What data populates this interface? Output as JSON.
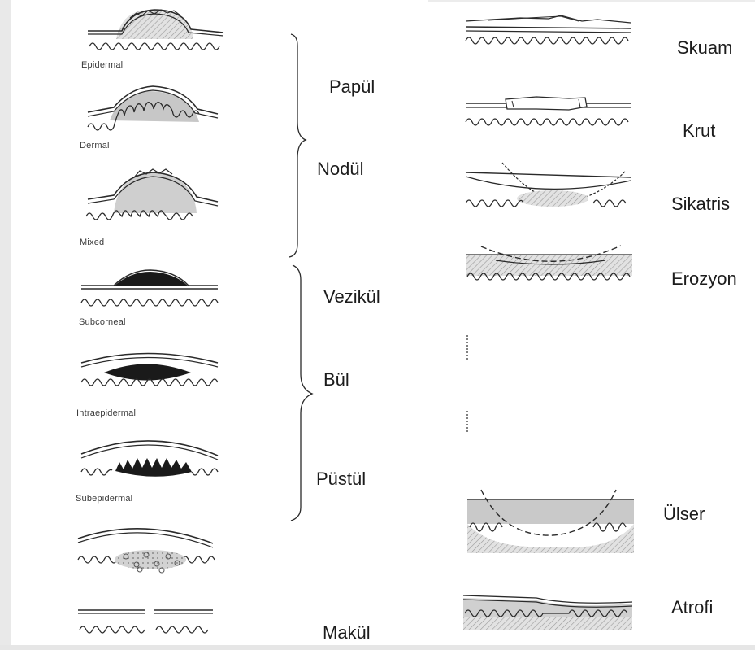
{
  "captions": {
    "epidermal": "Epidermal",
    "dermal": "Dermal",
    "mixed": "Mixed",
    "subcorneal": "Subcorneal",
    "intraepidermal": "Intraepidermal",
    "subepidermal": "Subepidermal"
  },
  "terms": {
    "papul": "Papül",
    "nodul": "Nodül",
    "vezikul": "Vezikül",
    "bul": "Bül",
    "pustul": "Püstül",
    "makul": "Makül",
    "skuam": "Skuam",
    "krut": "Krut",
    "sikatris": "Sikatris",
    "erozyon": "Erozyon",
    "ulser": "Ülser",
    "atrofi": "Atrofi"
  },
  "colors": {
    "ink": "#2a2a2a",
    "shade": "#bdbdbd",
    "lightShade": "#d6d6d6",
    "fluid": "#1a1a1a"
  }
}
